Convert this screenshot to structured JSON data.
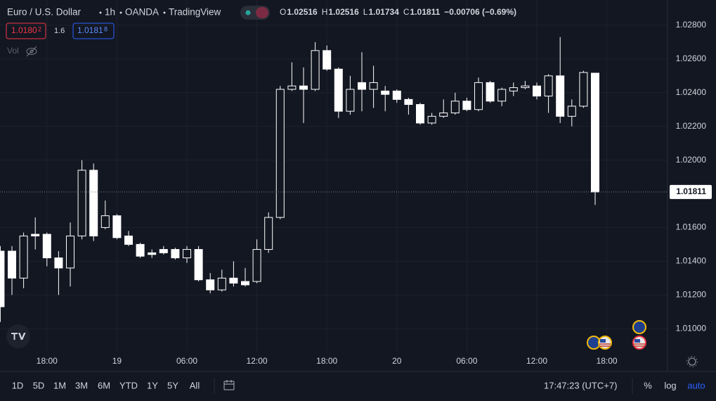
{
  "header": {
    "symbol": "Euro / U.S. Dollar",
    "interval": "1h",
    "exchange": "OANDA",
    "source": "TradingView",
    "ohlc": [
      {
        "label": "O",
        "value": "1.02516"
      },
      {
        "label": "H",
        "value": "1.02516"
      },
      {
        "label": "L",
        "value": "1.01734"
      },
      {
        "label": "C",
        "value": "1.01811"
      }
    ],
    "change": "−0.00706 (−0.69%)"
  },
  "trade": {
    "sell": {
      "price": "1.0180",
      "pip": "2"
    },
    "spread": "1.6",
    "buy": {
      "price": "1.0181",
      "pip": "8"
    }
  },
  "volume_label": "Vol",
  "toolbar": {
    "ranges": [
      "1D",
      "5D",
      "1M",
      "3M",
      "6M",
      "YTD",
      "1Y",
      "5Y",
      "All"
    ],
    "clock": "17:47:23 (UTC+7)",
    "options": [
      "%",
      "log",
      "auto"
    ]
  },
  "chart_data": {
    "type": "candlestick",
    "grid": true,
    "log_scale": false,
    "up_color": "#131722",
    "down_color": "#ffffff",
    "wick_color": "#ffffff",
    "categories": [
      null,
      null,
      null,
      null,
      "18:00",
      null,
      null,
      null,
      null,
      null,
      "19",
      null,
      null,
      null,
      null,
      null,
      "06:00",
      null,
      null,
      null,
      null,
      null,
      "12:00",
      null,
      null,
      null,
      null,
      null,
      "18:00",
      null,
      null,
      null,
      null,
      null,
      "20",
      null,
      null,
      null,
      null,
      null,
      "06:00",
      null,
      null,
      null,
      null,
      null,
      "12:00",
      null,
      null,
      null,
      null,
      null,
      "18:00"
    ],
    "open": [
      1.0146,
      1.0146,
      1.013,
      1.0156,
      1.0156,
      1.0142,
      1.0136,
      1.0155,
      1.0194,
      1.016,
      1.0167,
      1.0155,
      1.015,
      1.0145,
      1.0147,
      1.0147,
      1.0142,
      1.0147,
      1.0129,
      1.0123,
      1.013,
      1.0128,
      1.0128,
      1.0147,
      1.0166,
      1.0242,
      1.0244,
      1.0242,
      1.0265,
      1.0254,
      1.0229,
      1.0246,
      1.0242,
      1.0241,
      1.0241,
      1.0236,
      1.0233,
      1.0222,
      1.0226,
      1.0228,
      1.0235,
      1.023,
      1.0246,
      1.0235,
      1.0241,
      1.0243,
      1.0244,
      1.0238,
      1.025,
      1.0226,
      1.0232,
      1.02516,
      null
    ],
    "high": [
      1.0149,
      1.0149,
      1.0157,
      1.0166,
      1.0157,
      1.0146,
      1.0163,
      1.02,
      1.0198,
      1.0176,
      1.0168,
      1.0158,
      1.0151,
      1.0147,
      1.0149,
      1.0148,
      1.0149,
      1.0149,
      1.0133,
      1.0135,
      1.014,
      1.0136,
      1.0153,
      1.0169,
      1.0244,
      1.0258,
      1.0255,
      1.027,
      1.0268,
      1.0255,
      1.025,
      1.0264,
      1.0256,
      1.0244,
      1.0242,
      1.0237,
      1.0234,
      1.0228,
      1.0236,
      1.024,
      1.0237,
      1.0249,
      1.0247,
      1.0243,
      1.0246,
      1.0247,
      1.0246,
      1.0251,
      1.0273,
      1.0236,
      1.0253,
      1.02516,
      null
    ],
    "low": [
      1.0104,
      1.012,
      1.0124,
      1.0147,
      1.0137,
      1.012,
      1.0125,
      1.0153,
      1.0152,
      1.0159,
      1.0153,
      1.0149,
      1.0142,
      1.0142,
      1.0144,
      1.0141,
      1.0139,
      1.0128,
      1.0121,
      1.0122,
      1.0125,
      1.0125,
      1.0127,
      1.0145,
      1.0165,
      1.0241,
      1.0222,
      1.0241,
      1.0253,
      1.0225,
      1.0227,
      1.0229,
      1.0231,
      1.0229,
      1.0234,
      1.0227,
      1.0221,
      1.0221,
      1.0225,
      1.0227,
      1.0229,
      1.0229,
      1.0234,
      1.0232,
      1.0238,
      1.0242,
      1.0236,
      1.0228,
      1.0222,
      1.022,
      1.0231,
      1.01734,
      null
    ],
    "close": [
      1.0113,
      1.013,
      1.0155,
      1.0155,
      1.0142,
      1.0136,
      1.0155,
      1.0194,
      1.0155,
      1.0167,
      1.0154,
      1.015,
      1.0143,
      1.0144,
      1.0145,
      1.0142,
      1.0147,
      1.0129,
      1.0123,
      1.013,
      1.0127,
      1.0126,
      1.0147,
      1.0166,
      1.0242,
      1.0244,
      1.0242,
      1.0265,
      1.0254,
      1.0229,
      1.0242,
      1.0242,
      1.0246,
      1.0239,
      1.0236,
      1.0233,
      1.0222,
      1.0226,
      1.0228,
      1.0235,
      1.023,
      1.0246,
      1.0235,
      1.0242,
      1.0243,
      1.0244,
      1.0238,
      1.025,
      1.0226,
      1.0232,
      1.0252,
      1.01811,
      null
    ],
    "ylim": [
      1.00863,
      1.0295
    ],
    "yticks": [
      {
        "value": 1.028,
        "label": "1.02800"
      },
      {
        "value": 1.026,
        "label": "1.02600"
      },
      {
        "value": 1.024,
        "label": "1.02400"
      },
      {
        "value": 1.022,
        "label": "1.02200"
      },
      {
        "value": 1.02,
        "label": "1.02000"
      },
      {
        "value": 1.016,
        "label": "1.01600"
      },
      {
        "value": 1.014,
        "label": "1.01400"
      },
      {
        "value": 1.012,
        "label": "1.01200"
      },
      {
        "value": 1.01,
        "label": "1.01000"
      }
    ],
    "last_price": 1.01811
  }
}
